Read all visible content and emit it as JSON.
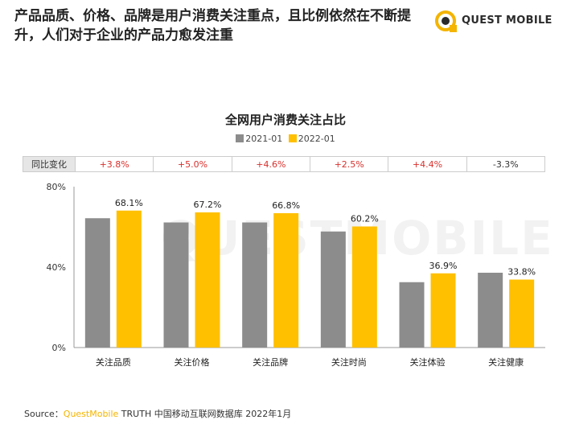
{
  "headline": "产品品质、价格、品牌是用户消费关注重点，且比例依然在不断提升，人们对于企业的产品力愈发注重",
  "logo": {
    "text": "QUEST MOBILE",
    "icon": "questmobile-logo-icon"
  },
  "watermark": "QUESTMOBILE",
  "colors": {
    "series_2021": "#8c8c8c",
    "series_2022": "#ffc000",
    "positive_change": "#d9302c",
    "negative_change": "#333333"
  },
  "yoy": {
    "label": "同比变化",
    "values": [
      "+3.8%",
      "+5.0%",
      "+4.6%",
      "+2.5%",
      "+4.4%",
      "-3.3%"
    ]
  },
  "chart_data": {
    "type": "bar",
    "title": "全网用户消费关注占比",
    "categories": [
      "关注品质",
      "关注价格",
      "关注品牌",
      "关注时尚",
      "关注体验",
      "关注健康"
    ],
    "series": [
      {
        "name": "2021-01",
        "values": [
          64.3,
          62.2,
          62.2,
          57.7,
          32.5,
          37.2
        ]
      },
      {
        "name": "2022-01",
        "values": [
          68.1,
          67.2,
          66.8,
          60.2,
          36.9,
          33.8
        ]
      }
    ],
    "data_labels": [
      "68.1%",
      "67.2%",
      "66.8%",
      "60.2%",
      "36.9%",
      "33.8%"
    ],
    "ylim": [
      0,
      80
    ],
    "yticks": [
      "0%",
      "40%",
      "80%"
    ],
    "ytick_values": [
      0,
      40,
      80
    ],
    "legend_position": "top-center",
    "grid": false,
    "xlabel": "",
    "ylabel": ""
  },
  "source": {
    "prefix": "Source：",
    "brand": "QuestMobile",
    "rest": " TRUTH 中国移动互联网数据库 2022年1月"
  }
}
